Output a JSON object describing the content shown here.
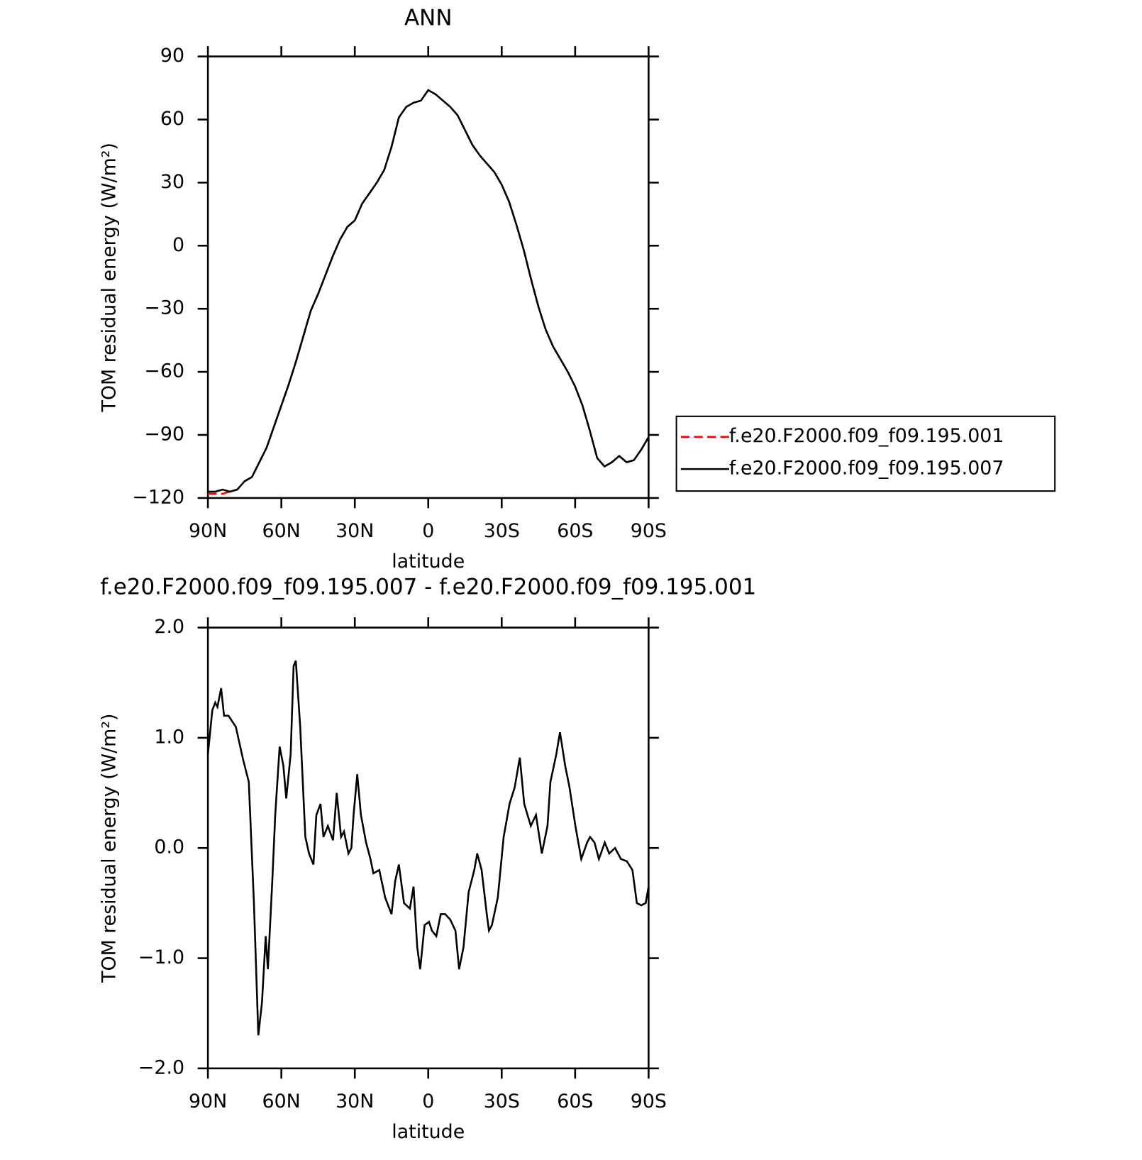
{
  "chart_data": [
    {
      "type": "line",
      "title": "ANN",
      "xlabel": "latitude",
      "ylabel": "TOM residual energy (W/m²)",
      "xlim": [
        90,
        -90
      ],
      "ylim": [
        -120,
        90
      ],
      "xticks": [
        {
          "value": 90,
          "label": "90N"
        },
        {
          "value": 60,
          "label": "60N"
        },
        {
          "value": 30,
          "label": "30N"
        },
        0,
        {
          "value": -30,
          "label": "30S"
        },
        {
          "value": -60,
          "label": "60S"
        },
        {
          "value": -90,
          "label": "90S"
        }
      ],
      "yticks": [
        {
          "value": 90,
          "label": "90"
        },
        {
          "value": 60,
          "label": "60"
        },
        {
          "value": 30,
          "label": "30"
        },
        0,
        {
          "value": -30,
          "label": "−30"
        },
        {
          "value": -60,
          "label": "−60"
        },
        {
          "value": -90,
          "label": "−90"
        },
        {
          "value": -120,
          "label": "−120"
        }
      ],
      "legend": "right",
      "x": [
        90,
        87,
        84,
        81,
        78,
        75,
        72,
        69,
        66,
        63,
        60,
        57,
        54,
        51,
        48,
        45,
        42,
        39,
        36,
        33,
        30,
        27,
        24,
        21,
        18,
        15,
        12,
        9,
        6,
        3,
        0,
        -3,
        -6,
        -9,
        -12,
        -15,
        -18,
        -21,
        -24,
        -27,
        -30,
        -33,
        -36,
        -39,
        -42,
        -45,
        -48,
        -51,
        -54,
        -57,
        -60,
        -63,
        -66,
        -69,
        -72,
        -75,
        -78,
        -81,
        -84,
        -87,
        -90
      ],
      "series": [
        {
          "name": "f.e20.F2000.f09_f09.195.001",
          "color": "#ff0000",
          "line_style": "dashed",
          "values": [
            -118,
            -118,
            -118,
            -117,
            -116,
            -112,
            -110,
            -103,
            -96,
            -86,
            -76,
            -66,
            -55,
            -43,
            -31,
            -23,
            -14,
            -5,
            3,
            9,
            12,
            20,
            25,
            30,
            36,
            47,
            61,
            66,
            68,
            69,
            74,
            72,
            69,
            66,
            62,
            55,
            48,
            43,
            39,
            35,
            29,
            21,
            10,
            -2,
            -16,
            -29,
            -40,
            -48,
            -54,
            -60,
            -67,
            -76,
            -88,
            -101,
            -105,
            -103,
            -100,
            -103,
            -102,
            -97,
            -91
          ]
        },
        {
          "name": "f.e20.F2000.f09_f09.195.007",
          "color": "#000000",
          "line_style": "solid",
          "values": [
            -117,
            -117,
            -116,
            -117,
            -116,
            -112,
            -110,
            -103,
            -96,
            -86,
            -76,
            -66,
            -55,
            -43,
            -31,
            -23,
            -14,
            -5,
            3,
            9,
            12,
            20,
            25,
            30,
            36,
            47,
            61,
            66,
            68,
            69,
            74,
            72,
            69,
            66,
            62,
            55,
            48,
            43,
            39,
            35,
            29,
            21,
            10,
            -2,
            -16,
            -29,
            -40,
            -48,
            -54,
            -60,
            -67,
            -76,
            -88,
            -101,
            -105,
            -103,
            -100,
            -103,
            -102,
            -97,
            -91
          ]
        }
      ]
    },
    {
      "type": "line",
      "title": "f.e20.F2000.f09_f09.195.007 - f.e20.F2000.f09_f09.195.001",
      "xlabel": "latitude",
      "ylabel": "TOM residual energy (W/m²)",
      "xlim": [
        90,
        -90
      ],
      "ylim": [
        -2,
        2
      ],
      "xticks": [
        {
          "value": 90,
          "label": "90N"
        },
        {
          "value": 60,
          "label": "60N"
        },
        {
          "value": 30,
          "label": "30N"
        },
        0,
        {
          "value": -30,
          "label": "30S"
        },
        {
          "value": -60,
          "label": "60S"
        },
        {
          "value": -90,
          "label": "90S"
        }
      ],
      "yticks": [
        {
          "value": 2,
          "label": "2.0"
        },
        {
          "value": 1,
          "label": "1.0"
        },
        {
          "value": 0,
          "label": "0.0"
        },
        {
          "value": -1,
          "label": "−1.0"
        },
        {
          "value": -2,
          "label": "−2.0"
        }
      ],
      "x": [
        90,
        88.2,
        87,
        86.1,
        84.6,
        83.4,
        81.6,
        78.6,
        75.6,
        73.3,
        71.2,
        69.4,
        67.9,
        66.4,
        65.5,
        63.7,
        62.5,
        60.7,
        59.2,
        58,
        56.2,
        55,
        54.1,
        52.3,
        50.2,
        48.7,
        46.9,
        45.7,
        44,
        42.8,
        41,
        38.9,
        37.4,
        35.6,
        34.4,
        32.6,
        31.4,
        30.5,
        29,
        27.5,
        25.4,
        23.6,
        22.4,
        20,
        17.6,
        15,
        13.5,
        12,
        9.9,
        7.5,
        6,
        4.5,
        3.3,
        1.5,
        -0.3,
        -1.5,
        -3.3,
        -5.1,
        -6.9,
        -9,
        -11.1,
        -12.6,
        -14.4,
        -16.5,
        -18.8,
        -20,
        -21.8,
        -23.9,
        -24.8,
        -26,
        -28.4,
        -30.8,
        -33.2,
        -35.3,
        -37.4,
        -39.2,
        -41.9,
        -44,
        -46.4,
        -48.7,
        -49.9,
        -52.3,
        -53.8,
        -55.9,
        -57.7,
        -60.1,
        -62.5,
        -64.9,
        -66.1,
        -67.9,
        -69.7,
        -72.1,
        -73.9,
        -76.3,
        -78.7,
        -81.1,
        -83.4,
        -85.2,
        -87,
        -88.8,
        -90
      ],
      "series": [
        {
          "color": "#000000",
          "line_style": "solid",
          "values": [
            0.85,
            1.25,
            1.32,
            1.28,
            1.45,
            1.2,
            1.2,
            1.1,
            0.8,
            0.6,
            -0.5,
            -1.7,
            -1.4,
            -0.8,
            -1.1,
            -0.3,
            0.3,
            0.92,
            0.75,
            0.45,
            0.85,
            1.65,
            1.7,
            1.1,
            0.1,
            -0.05,
            -0.15,
            0.3,
            0.4,
            0.1,
            0.2,
            0.07,
            0.5,
            0.1,
            0.15,
            -0.05,
            0,
            0.3,
            0.67,
            0.3,
            0.05,
            -0.1,
            -0.23,
            -0.2,
            -0.45,
            -0.6,
            -0.3,
            -0.15,
            -0.5,
            -0.55,
            -0.35,
            -0.9,
            -1.1,
            -0.7,
            -0.67,
            -0.75,
            -0.8,
            -0.6,
            -0.6,
            -0.65,
            -0.75,
            -1.1,
            -0.9,
            -0.4,
            -0.2,
            -0.05,
            -0.2,
            -0.6,
            -0.75,
            -0.7,
            -0.45,
            0.1,
            0.4,
            0.55,
            0.82,
            0.4,
            0.2,
            0.3,
            -0.05,
            0.2,
            0.6,
            0.85,
            1.05,
            0.75,
            0.55,
            0.2,
            -0.1,
            0.05,
            0.1,
            0.05,
            -0.1,
            0.05,
            -0.05,
            0,
            -0.1,
            -0.12,
            -0.2,
            -0.5,
            -0.52,
            -0.5,
            -0.35
          ]
        }
      ]
    }
  ]
}
